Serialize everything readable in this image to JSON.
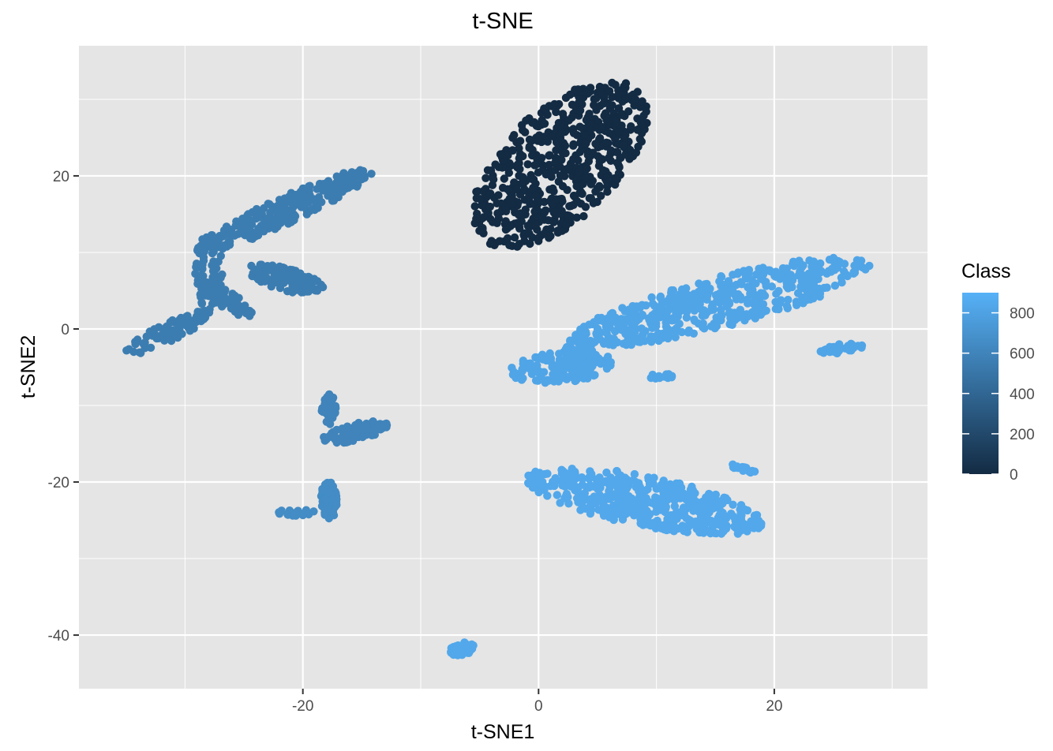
{
  "chart_data": {
    "type": "scatter",
    "title": "t-SNE",
    "xlabel": "t-SNE1",
    "ylabel": "t-SNE2",
    "xlim": [
      -39,
      33
    ],
    "ylim": [
      -47,
      37
    ],
    "x_ticks": [
      -20,
      0,
      20
    ],
    "x_tick_labels": [
      "-20",
      "0",
      "20"
    ],
    "y_ticks": [
      -40,
      -20,
      0,
      20
    ],
    "y_tick_labels": [
      "-40",
      "-20",
      "0",
      "20"
    ],
    "x_minor_ticks": [
      -30,
      -10,
      10,
      30
    ],
    "y_minor_ticks": [
      -30,
      -10,
      10,
      30
    ],
    "grid": true,
    "background": "#e5e5e5",
    "gridline_color": "#ffffff",
    "color_scale": {
      "title": "Class",
      "low_color": "#132b43",
      "high_color": "#56b1f7",
      "range": [
        0,
        900
      ],
      "breaks": [
        0,
        200,
        400,
        600,
        800
      ],
      "break_labels": [
        "0",
        "200",
        "400",
        "600",
        "800"
      ],
      "legend_position": "right"
    },
    "clusters": [
      {
        "label": "A",
        "class": 0,
        "center": [
          1.8,
          21.5
        ],
        "extent": [
          12,
          5.5
        ],
        "angle_deg": 62,
        "points": 620
      },
      {
        "label": "B",
        "class": 550,
        "center": [
          -21.5,
          15.5
        ],
        "extent": [
          9.2,
          1.6
        ],
        "angle_deg": 36,
        "points": 260
      },
      {
        "label": "C",
        "class": 550,
        "center": [
          -21.5,
          6.5
        ],
        "extent": [
          3.5,
          1.4
        ],
        "angle_deg": -25,
        "points": 140
      },
      {
        "label": "D",
        "class": 550,
        "center": [
          -26.5,
          3.8
        ],
        "extent": [
          3.2,
          1.0
        ],
        "angle_deg": -45,
        "points": 80
      },
      {
        "label": "E",
        "class": 550,
        "center": [
          -28.0,
          7.5
        ],
        "extent": [
          1.2,
          5.0
        ],
        "angle_deg": 0,
        "points": 60
      },
      {
        "label": "F",
        "class": 550,
        "center": [
          -31.5,
          -0.5
        ],
        "extent": [
          4.5,
          1.1
        ],
        "angle_deg": 38,
        "points": 80
      },
      {
        "label": "G",
        "class": 600,
        "center": [
          -17.8,
          -10.5
        ],
        "extent": [
          0.6,
          2.0
        ],
        "angle_deg": 0,
        "points": 50
      },
      {
        "label": "H",
        "class": 600,
        "center": [
          -15.5,
          -13.5
        ],
        "extent": [
          3.0,
          1.1
        ],
        "angle_deg": 20,
        "points": 90
      },
      {
        "label": "I",
        "class": 650,
        "center": [
          -17.8,
          -22.5
        ],
        "extent": [
          0.7,
          2.6
        ],
        "angle_deg": 0,
        "points": 70
      },
      {
        "label": "J",
        "class": 650,
        "center": [
          -20.5,
          -24.0
        ],
        "extent": [
          1.8,
          0.4
        ],
        "angle_deg": 0,
        "points": 20
      },
      {
        "label": "K",
        "class": 820,
        "center": [
          15.5,
          3.5
        ],
        "extent": [
          13.5,
          3.2
        ],
        "angle_deg": 22,
        "points": 520
      },
      {
        "label": "L",
        "class": 820,
        "center": [
          2.0,
          -5.0
        ],
        "extent": [
          4.5,
          2.0
        ],
        "angle_deg": 10,
        "points": 140
      },
      {
        "label": "M",
        "class": 820,
        "center": [
          3.5,
          -3.0
        ],
        "extent": [
          1.2,
          3.5
        ],
        "angle_deg": 0,
        "points": 80
      },
      {
        "label": "N",
        "class": 820,
        "center": [
          10.5,
          -6.2
        ],
        "extent": [
          1.5,
          0.4
        ],
        "angle_deg": 5,
        "points": 15
      },
      {
        "label": "O",
        "class": 820,
        "center": [
          25.8,
          -2.5
        ],
        "extent": [
          2.0,
          0.6
        ],
        "angle_deg": 15,
        "points": 35
      },
      {
        "label": "P",
        "class": 840,
        "center": [
          9.0,
          -22.5
        ],
        "extent": [
          10.5,
          3.2
        ],
        "angle_deg": -18,
        "points": 480
      },
      {
        "label": "Q",
        "class": 840,
        "center": [
          17.5,
          -18.3
        ],
        "extent": [
          1.6,
          0.3
        ],
        "angle_deg": -25,
        "points": 15
      },
      {
        "label": "R",
        "class": 840,
        "center": [
          -6.5,
          -41.8
        ],
        "extent": [
          1.2,
          0.8
        ],
        "angle_deg": 20,
        "points": 35
      }
    ]
  }
}
